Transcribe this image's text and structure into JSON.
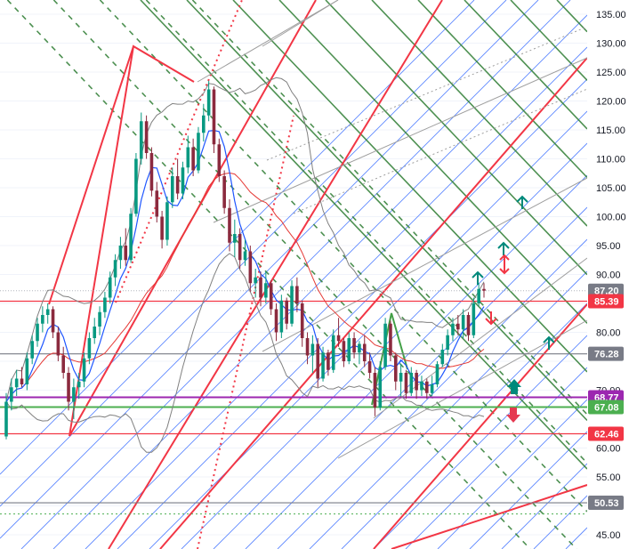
{
  "chart_data": {
    "type": "candlestick",
    "title": "",
    "ylim": [
      44.0,
      137.5
    ],
    "y_ticks": [
      "135.00",
      "130.00",
      "125.00",
      "120.00",
      "115.00",
      "110.00",
      "105.00",
      "100.00",
      "95.00",
      "90.00",
      "80.00",
      "70.00",
      "60.00",
      "55.00",
      "45.00"
    ],
    "price_badges": [
      {
        "label": "87.20",
        "value": 87.2,
        "color": "#787b86"
      },
      {
        "label": "85.39",
        "value": 85.39,
        "color": "#f23645"
      },
      {
        "label": "76.28",
        "value": 76.28,
        "color": "#787b86"
      },
      {
        "label": "68.77",
        "value": 68.77,
        "color": "#9c27b0"
      },
      {
        "label": "67.08",
        "value": 67.08,
        "color": "#4caf50"
      },
      {
        "label": "62.46",
        "value": 62.46,
        "color": "#f23645"
      },
      {
        "label": "50.53",
        "value": 50.53,
        "color": "#787b86"
      }
    ],
    "candles": [
      [
        62.0,
        69.5,
        61.5,
        68.0
      ],
      [
        68.0,
        72.0,
        66.5,
        70.5
      ],
      [
        70.5,
        73.5,
        69.0,
        72.0
      ],
      [
        72.0,
        74.0,
        70.5,
        71.0
      ],
      [
        71.0,
        76.5,
        70.0,
        75.5
      ],
      [
        75.5,
        79.5,
        74.5,
        78.5
      ],
      [
        78.5,
        82.5,
        77.5,
        81.5
      ],
      [
        81.5,
        84.5,
        80.0,
        83.0
      ],
      [
        83.0,
        85.0,
        81.5,
        84.0
      ],
      [
        84.0,
        84.5,
        79.0,
        80.0
      ],
      [
        80.0,
        81.0,
        75.0,
        76.0
      ],
      [
        76.0,
        77.5,
        72.0,
        73.0
      ],
      [
        73.0,
        74.0,
        66.5,
        68.0
      ],
      [
        68.0,
        72.0,
        65.0,
        70.5
      ],
      [
        70.5,
        73.0,
        68.5,
        71.5
      ],
      [
        71.5,
        76.5,
        70.5,
        75.5
      ],
      [
        75.5,
        80.0,
        74.5,
        79.0
      ],
      [
        79.0,
        82.5,
        78.0,
        81.0
      ],
      [
        81.0,
        84.5,
        79.5,
        83.5
      ],
      [
        83.5,
        87.0,
        82.5,
        86.0
      ],
      [
        86.0,
        90.5,
        85.0,
        89.5
      ],
      [
        89.5,
        93.5,
        88.0,
        92.5
      ],
      [
        92.5,
        96.5,
        91.0,
        95.0
      ],
      [
        95.0,
        98.0,
        91.5,
        92.5
      ],
      [
        92.5,
        101.5,
        92.0,
        100.5
      ],
      [
        100.5,
        111.0,
        100.0,
        110.0
      ],
      [
        110.0,
        118.0,
        109.0,
        116.5
      ],
      [
        116.5,
        117.5,
        110.0,
        111.0
      ],
      [
        111.0,
        112.0,
        103.5,
        104.5
      ],
      [
        104.5,
        106.0,
        99.0,
        100.0
      ],
      [
        100.0,
        101.0,
        94.5,
        96.0
      ],
      [
        96.0,
        103.5,
        95.0,
        102.5
      ],
      [
        102.5,
        108.5,
        101.5,
        107.0
      ],
      [
        107.0,
        110.0,
        103.0,
        104.0
      ],
      [
        104.0,
        109.5,
        103.0,
        108.5
      ],
      [
        108.5,
        114.0,
        107.5,
        112.0
      ],
      [
        112.0,
        113.5,
        107.0,
        108.0
      ],
      [
        108.0,
        115.5,
        107.5,
        114.5
      ],
      [
        114.5,
        119.5,
        113.0,
        117.5
      ],
      [
        117.5,
        123.5,
        116.5,
        122.0
      ],
      [
        122.0,
        122.5,
        111.0,
        112.5
      ],
      [
        112.5,
        113.5,
        106.0,
        107.0
      ],
      [
        107.0,
        108.0,
        100.5,
        101.5
      ],
      [
        101.5,
        103.0,
        94.0,
        95.5
      ],
      [
        95.5,
        99.5,
        93.0,
        97.0
      ],
      [
        97.0,
        98.0,
        91.0,
        92.5
      ],
      [
        92.5,
        96.0,
        91.5,
        94.0
      ],
      [
        94.0,
        95.0,
        87.0,
        88.5
      ],
      [
        88.5,
        91.0,
        86.0,
        89.5
      ],
      [
        89.5,
        90.5,
        84.5,
        86.0
      ],
      [
        86.0,
        90.5,
        85.0,
        88.5
      ],
      [
        88.5,
        89.0,
        83.0,
        84.0
      ],
      [
        84.0,
        85.0,
        78.5,
        80.0
      ],
      [
        80.0,
        86.5,
        79.0,
        85.5
      ],
      [
        85.5,
        86.0,
        80.5,
        81.5
      ],
      [
        81.5,
        89.0,
        81.0,
        88.0
      ],
      [
        88.0,
        89.5,
        83.5,
        85.0
      ],
      [
        85.0,
        85.5,
        77.5,
        79.0
      ],
      [
        79.0,
        80.0,
        74.5,
        76.0
      ],
      [
        76.0,
        79.5,
        73.0,
        78.0
      ],
      [
        78.0,
        79.0,
        70.5,
        72.0
      ],
      [
        72.0,
        77.5,
        71.5,
        76.5
      ],
      [
        76.5,
        77.0,
        72.5,
        73.5
      ],
      [
        73.5,
        80.5,
        73.0,
        79.5
      ],
      [
        79.5,
        82.5,
        77.5,
        78.5
      ],
      [
        78.5,
        79.0,
        74.0,
        75.0
      ],
      [
        75.0,
        80.0,
        74.5,
        79.0
      ],
      [
        79.0,
        80.0,
        75.5,
        76.5
      ],
      [
        76.5,
        78.5,
        74.5,
        78.0
      ],
      [
        78.0,
        79.5,
        74.0,
        75.0
      ],
      [
        75.0,
        76.5,
        72.0,
        73.0
      ],
      [
        73.0,
        74.0,
        65.5,
        67.0
      ],
      [
        67.0,
        75.0,
        66.5,
        74.0
      ],
      [
        74.0,
        82.5,
        73.5,
        81.5
      ],
      [
        81.5,
        82.0,
        75.0,
        76.0
      ],
      [
        76.0,
        76.5,
        70.0,
        71.5
      ],
      [
        71.5,
        74.5,
        69.0,
        73.0
      ],
      [
        73.0,
        73.5,
        68.5,
        69.5
      ],
      [
        69.5,
        74.0,
        69.0,
        73.0
      ],
      [
        73.0,
        73.5,
        68.5,
        70.0
      ],
      [
        70.0,
        72.5,
        69.0,
        71.5
      ],
      [
        71.5,
        72.0,
        68.5,
        69.5
      ],
      [
        69.5,
        72.5,
        69.0,
        71.0
      ],
      [
        71.0,
        75.0,
        70.5,
        74.5
      ],
      [
        74.5,
        78.0,
        74.0,
        77.0
      ],
      [
        77.0,
        80.5,
        76.0,
        79.5
      ],
      [
        79.5,
        82.5,
        78.5,
        81.5
      ],
      [
        81.5,
        83.0,
        79.5,
        80.5
      ],
      [
        80.5,
        84.0,
        79.0,
        83.0
      ],
      [
        83.0,
        83.5,
        78.5,
        79.5
      ],
      [
        79.5,
        86.0,
        79.0,
        85.0
      ],
      [
        85.0,
        88.5,
        84.5,
        87.5
      ],
      [
        87.5,
        88.5,
        86.0,
        87.2
      ]
    ],
    "horizontal_levels": [
      {
        "value": 85.39,
        "color": "#f23645"
      },
      {
        "value": 76.28,
        "color": "#787b86"
      },
      {
        "value": 68.77,
        "color": "#9c27b0"
      },
      {
        "value": 67.08,
        "color": "#4caf50"
      },
      {
        "value": 62.46,
        "color": "#f23645"
      },
      {
        "value": 50.53,
        "color": "#787b86"
      }
    ],
    "colors": {
      "up": "#089981",
      "down": "#8b2a3e",
      "red": "#f23645",
      "blue": "#2962ff",
      "green": "#2e7d32",
      "gray": "#9e9e9e",
      "teal": "#00897b",
      "axis_text": "#131722"
    }
  }
}
